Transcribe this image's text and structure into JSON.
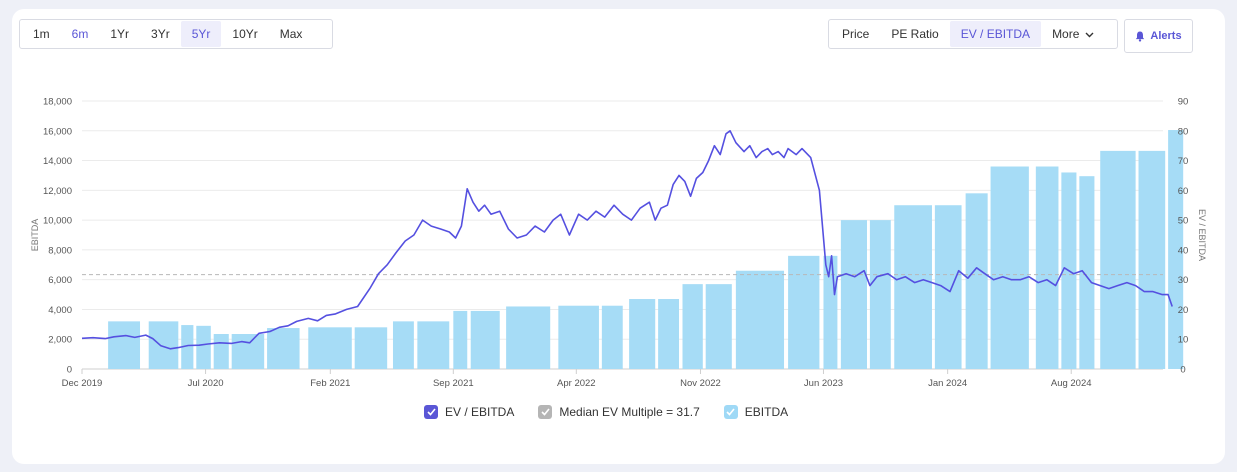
{
  "toolbar": {
    "ranges": [
      {
        "label": "1m",
        "state": "normal"
      },
      {
        "label": "6m",
        "state": "accent"
      },
      {
        "label": "1Yr",
        "state": "normal"
      },
      {
        "label": "3Yr",
        "state": "normal"
      },
      {
        "label": "5Yr",
        "state": "active"
      },
      {
        "label": "10Yr",
        "state": "normal"
      },
      {
        "label": "Max",
        "state": "normal"
      }
    ],
    "metrics": [
      {
        "label": "Price",
        "state": "normal"
      },
      {
        "label": "PE Ratio",
        "state": "normal"
      },
      {
        "label": "EV / EBITDA",
        "state": "active"
      },
      {
        "label": "More",
        "state": "normal"
      }
    ],
    "alerts_label": "Alerts"
  },
  "legend": {
    "ev": "EV / EBITDA",
    "median": "Median EV Multiple = 31.7",
    "ebitda": "EBITDA"
  },
  "colors": {
    "accent": "#5a56d6",
    "line": "#5550e0",
    "bar": "#a6dcf6",
    "median_check": "#b5b5b5",
    "ebitda_check": "#9fd9f6"
  },
  "chart_data": {
    "type": "bar+line",
    "left_axis": {
      "label": "EBITDA",
      "min": 0,
      "max": 18000,
      "ticks": [
        "0",
        "2,000",
        "4,000",
        "6,000",
        "8,000",
        "10,000",
        "12,000",
        "14,000",
        "16,000",
        "18,000"
      ]
    },
    "right_axis": {
      "label": "EV / EBITDA",
      "min": 0,
      "max": 90,
      "ticks": [
        "0",
        "10",
        "20",
        "30",
        "40",
        "50",
        "60",
        "70",
        "80",
        "90"
      ]
    },
    "x_axis": {
      "start": "2019-12",
      "end": "2024-12",
      "ticks": [
        {
          "label": "Dec 2019",
          "date": "2019-12-01"
        },
        {
          "label": "Jul 2020",
          "date": "2020-07-01"
        },
        {
          "label": "Feb 2021",
          "date": "2021-02-01"
        },
        {
          "label": "Sep 2021",
          "date": "2021-09-01"
        },
        {
          "label": "Apr 2022",
          "date": "2022-04-01"
        },
        {
          "label": "Nov 2022",
          "date": "2022-11-01"
        },
        {
          "label": "Jun 2023",
          "date": "2023-06-01"
        },
        {
          "label": "Jan 2024",
          "date": "2024-01-01"
        },
        {
          "label": "Aug 2024",
          "date": "2024-08-01"
        }
      ]
    },
    "ebitda_bars": [
      {
        "start": "2020-01-15",
        "end": "2020-03-10",
        "value": 3200
      },
      {
        "start": "2020-03-25",
        "end": "2020-05-15",
        "value": 3200
      },
      {
        "start": "2020-05-20",
        "end": "2020-06-10",
        "value": 2950
      },
      {
        "start": "2020-06-15",
        "end": "2020-07-10",
        "value": 2900
      },
      {
        "start": "2020-07-15",
        "end": "2020-08-10",
        "value": 2350
      },
      {
        "start": "2020-08-15",
        "end": "2020-10-10",
        "value": 2350
      },
      {
        "start": "2020-10-15",
        "end": "2020-12-10",
        "value": 2750
      },
      {
        "start": "2020-12-25",
        "end": "2021-03-10",
        "value": 2800
      },
      {
        "start": "2021-03-15",
        "end": "2021-05-10",
        "value": 2800
      },
      {
        "start": "2021-05-20",
        "end": "2021-06-25",
        "value": 3200
      },
      {
        "start": "2021-07-01",
        "end": "2021-08-25",
        "value": 3200
      },
      {
        "start": "2021-09-01",
        "end": "2021-09-25",
        "value": 3900
      },
      {
        "start": "2021-10-01",
        "end": "2021-11-20",
        "value": 3900
      },
      {
        "start": "2021-12-01",
        "end": "2022-02-15",
        "value": 4200
      },
      {
        "start": "2022-03-01",
        "end": "2022-05-10",
        "value": 4250
      },
      {
        "start": "2022-05-15",
        "end": "2022-06-20",
        "value": 4250
      },
      {
        "start": "2022-07-01",
        "end": "2022-08-15",
        "value": 4700
      },
      {
        "start": "2022-08-20",
        "end": "2022-09-25",
        "value": 4700
      },
      {
        "start": "2022-10-01",
        "end": "2022-11-05",
        "value": 5700
      },
      {
        "start": "2022-11-10",
        "end": "2022-12-25",
        "value": 5700
      },
      {
        "start": "2023-01-01",
        "end": "2023-03-25",
        "value": 6600
      },
      {
        "start": "2023-04-01",
        "end": "2023-05-25",
        "value": 7600
      },
      {
        "start": "2023-06-01",
        "end": "2023-06-25",
        "value": 7600
      },
      {
        "start": "2023-07-01",
        "end": "2023-08-15",
        "value": 10000
      },
      {
        "start": "2023-08-20",
        "end": "2023-09-25",
        "value": 10000
      },
      {
        "start": "2023-10-01",
        "end": "2023-12-05",
        "value": 11000
      },
      {
        "start": "2023-12-10",
        "end": "2024-01-25",
        "value": 11000
      },
      {
        "start": "2024-02-01",
        "end": "2024-03-10",
        "value": 11800
      },
      {
        "start": "2024-03-15",
        "end": "2024-05-20",
        "value": 13600
      },
      {
        "start": "2024-06-01",
        "end": "2024-07-10",
        "value": 13600
      },
      {
        "start": "2024-07-15",
        "end": "2024-08-10",
        "value": 13200
      },
      {
        "start": "2024-08-15",
        "end": "2024-09-10",
        "value": 12950
      },
      {
        "start": "2024-09-20",
        "end": "2024-11-20",
        "value": 14650
      },
      {
        "start": "2024-11-25",
        "end": "2025-01-10",
        "value": 14650
      },
      {
        "start": "2025-01-15",
        "end": "2025-02-10",
        "value": 16050
      }
    ],
    "median_ev_multiple": 31.7,
    "ev_ebitda": [
      [
        "2019-12-01",
        10.3
      ],
      [
        "2019-12-20",
        10.5
      ],
      [
        "2020-01-10",
        10.2
      ],
      [
        "2020-01-25",
        10.8
      ],
      [
        "2020-02-15",
        11.2
      ],
      [
        "2020-03-01",
        10.6
      ],
      [
        "2020-03-20",
        11.4
      ],
      [
        "2020-04-01",
        10.2
      ],
      [
        "2020-04-15",
        7.8
      ],
      [
        "2020-05-01",
        6.8
      ],
      [
        "2020-05-15",
        7.2
      ],
      [
        "2020-06-01",
        7.9
      ],
      [
        "2020-06-20",
        8.0
      ],
      [
        "2020-07-05",
        8.4
      ],
      [
        "2020-07-25",
        8.8
      ],
      [
        "2020-08-15",
        8.6
      ],
      [
        "2020-09-01",
        9.2
      ],
      [
        "2020-09-15",
        8.8
      ],
      [
        "2020-10-01",
        12.0
      ],
      [
        "2020-10-20",
        12.6
      ],
      [
        "2020-11-05",
        14.0
      ],
      [
        "2020-11-20",
        14.5
      ],
      [
        "2020-12-05",
        16.0
      ],
      [
        "2020-12-25",
        17.0
      ],
      [
        "2021-01-10",
        16.2
      ],
      [
        "2021-01-25",
        18.0
      ],
      [
        "2021-02-10",
        18.5
      ],
      [
        "2021-03-01",
        20.0
      ],
      [
        "2021-03-20",
        21.0
      ],
      [
        "2021-04-10",
        27.0
      ],
      [
        "2021-04-25",
        32.0
      ],
      [
        "2021-05-10",
        35.0
      ],
      [
        "2021-05-25",
        39.0
      ],
      [
        "2021-06-10",
        43.0
      ],
      [
        "2021-06-25",
        45.0
      ],
      [
        "2021-07-10",
        50.0
      ],
      [
        "2021-07-25",
        48.0
      ],
      [
        "2021-08-10",
        47.0
      ],
      [
        "2021-08-25",
        46.0
      ],
      [
        "2021-09-05",
        44.0
      ],
      [
        "2021-09-15",
        48.0
      ],
      [
        "2021-09-25",
        60.5
      ],
      [
        "2021-10-05",
        56.0
      ],
      [
        "2021-10-15",
        53.0
      ],
      [
        "2021-10-25",
        55.0
      ],
      [
        "2021-11-05",
        52.0
      ],
      [
        "2021-11-20",
        53.0
      ],
      [
        "2021-12-05",
        47.0
      ],
      [
        "2021-12-20",
        44.0
      ],
      [
        "2022-01-05",
        45.0
      ],
      [
        "2022-01-20",
        48.0
      ],
      [
        "2022-02-05",
        46.0
      ],
      [
        "2022-02-20",
        50.0
      ],
      [
        "2022-03-05",
        52.0
      ],
      [
        "2022-03-20",
        45.0
      ],
      [
        "2022-04-05",
        52.0
      ],
      [
        "2022-04-20",
        50.0
      ],
      [
        "2022-05-05",
        53.0
      ],
      [
        "2022-05-20",
        51.0
      ],
      [
        "2022-06-05",
        55.0
      ],
      [
        "2022-06-20",
        52.0
      ],
      [
        "2022-07-05",
        50.0
      ],
      [
        "2022-07-20",
        54.0
      ],
      [
        "2022-08-05",
        56.0
      ],
      [
        "2022-08-15",
        50.0
      ],
      [
        "2022-08-25",
        54.0
      ],
      [
        "2022-09-05",
        55.0
      ],
      [
        "2022-09-15",
        62.0
      ],
      [
        "2022-09-25",
        65.0
      ],
      [
        "2022-10-05",
        63.0
      ],
      [
        "2022-10-15",
        58.0
      ],
      [
        "2022-10-25",
        64.0
      ],
      [
        "2022-11-05",
        66.0
      ],
      [
        "2022-11-15",
        70.0
      ],
      [
        "2022-11-25",
        75.0
      ],
      [
        "2022-12-05",
        72.0
      ],
      [
        "2022-12-15",
        79.0
      ],
      [
        "2022-12-22",
        80.0
      ],
      [
        "2023-01-01",
        76.0
      ],
      [
        "2023-01-15",
        73.0
      ],
      [
        "2023-01-25",
        75.0
      ],
      [
        "2023-02-05",
        71.0
      ],
      [
        "2023-02-15",
        73.0
      ],
      [
        "2023-02-25",
        74.0
      ],
      [
        "2023-03-05",
        72.0
      ],
      [
        "2023-03-15",
        73.0
      ],
      [
        "2023-03-25",
        71.0
      ],
      [
        "2023-04-01",
        74.0
      ],
      [
        "2023-04-15",
        72.0
      ],
      [
        "2023-04-25",
        74.0
      ],
      [
        "2023-05-10",
        71.0
      ],
      [
        "2023-05-25",
        60.0
      ],
      [
        "2023-06-05",
        35.0
      ],
      [
        "2023-06-10",
        31.0
      ],
      [
        "2023-06-15",
        38.0
      ],
      [
        "2023-06-20",
        25.0
      ],
      [
        "2023-06-25",
        31.0
      ],
      [
        "2023-07-10",
        32.0
      ],
      [
        "2023-07-25",
        31.0
      ],
      [
        "2023-08-10",
        33.0
      ],
      [
        "2023-08-20",
        28.0
      ],
      [
        "2023-09-01",
        31.0
      ],
      [
        "2023-09-20",
        32.0
      ],
      [
        "2023-10-05",
        30.0
      ],
      [
        "2023-10-20",
        31.0
      ],
      [
        "2023-11-05",
        29.0
      ],
      [
        "2023-11-20",
        30.0
      ],
      [
        "2023-12-05",
        29.0
      ],
      [
        "2023-12-20",
        28.0
      ],
      [
        "2024-01-05",
        26.0
      ],
      [
        "2024-01-20",
        33.0
      ],
      [
        "2024-02-05",
        30.5
      ],
      [
        "2024-02-20",
        34.0
      ],
      [
        "2024-03-05",
        32.0
      ],
      [
        "2024-03-20",
        30.0
      ],
      [
        "2024-04-05",
        31.0
      ],
      [
        "2024-04-20",
        30.0
      ],
      [
        "2024-05-05",
        30.0
      ],
      [
        "2024-05-20",
        31.0
      ],
      [
        "2024-06-05",
        29.0
      ],
      [
        "2024-06-20",
        30.0
      ],
      [
        "2024-07-05",
        28.0
      ],
      [
        "2024-07-20",
        34.0
      ],
      [
        "2024-08-05",
        32.0
      ],
      [
        "2024-08-20",
        33.0
      ],
      [
        "2024-09-05",
        29.0
      ],
      [
        "2024-09-20",
        28.0
      ],
      [
        "2024-10-05",
        27.0
      ],
      [
        "2024-10-20",
        28.0
      ],
      [
        "2024-11-05",
        29.0
      ],
      [
        "2024-11-20",
        28.0
      ],
      [
        "2024-12-05",
        26.0
      ],
      [
        "2024-12-20",
        26.0
      ],
      [
        "2025-01-05",
        25.0
      ],
      [
        "2025-01-15",
        25.0
      ],
      [
        "2025-01-22",
        21.0
      ]
    ]
  }
}
